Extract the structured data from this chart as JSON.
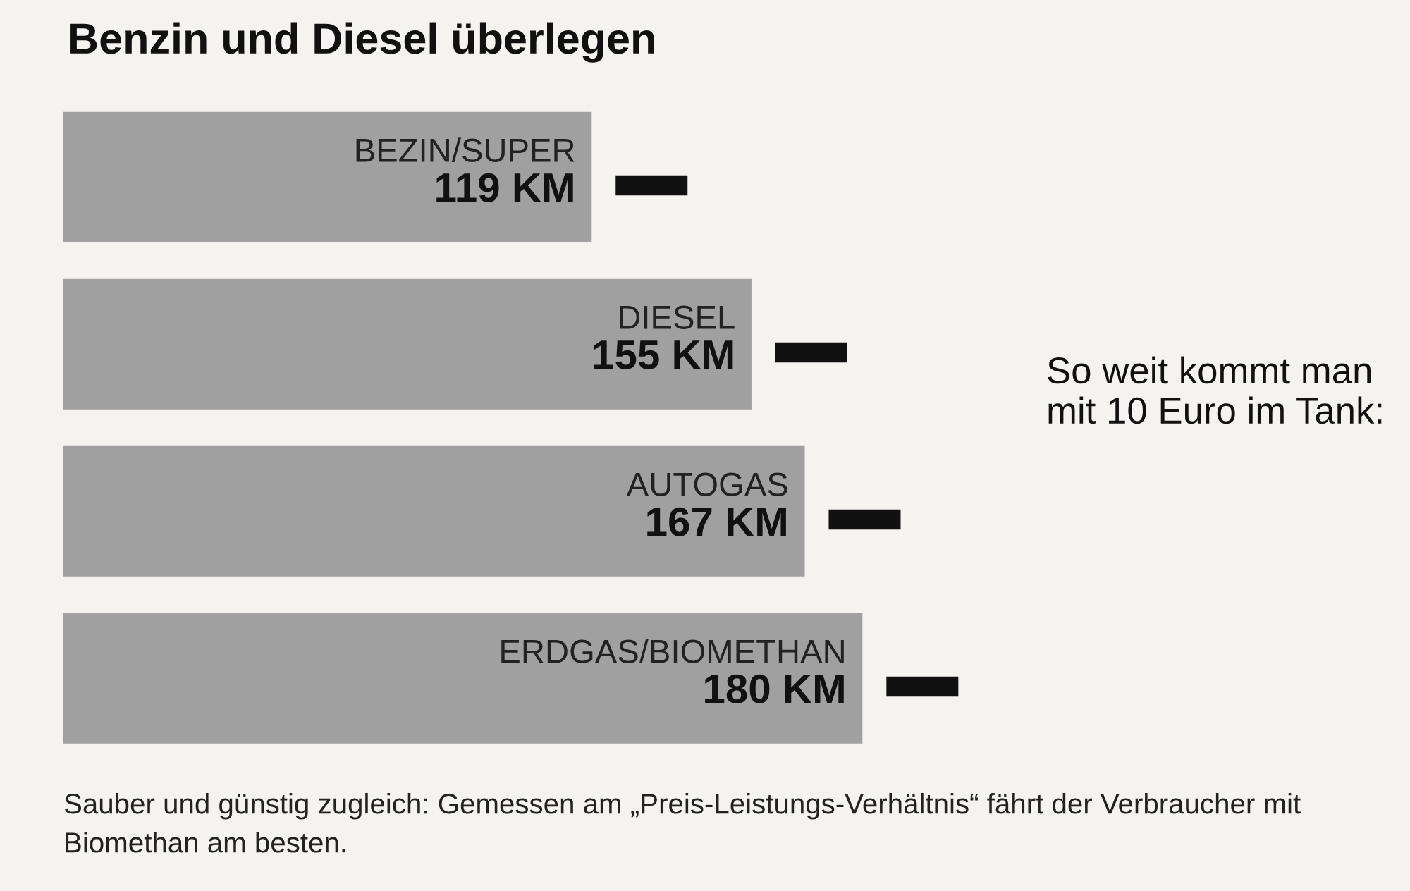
{
  "chart_data": {
    "type": "bar",
    "orientation": "horizontal",
    "title": "Benzin und Diesel überlegen",
    "categories": [
      "BEZIN/SUPER",
      "DIESEL",
      "AUTOGAS",
      "ERDGAS/BIOMETHAN"
    ],
    "values": [
      119,
      155,
      167,
      180
    ],
    "value_labels": [
      "119 KM",
      "155 KM",
      "167 KM",
      "180 KM"
    ],
    "colors": [
      "#a0a0a0",
      "#a0a0a0",
      "#a0a0a0",
      "#a0a0a0"
    ],
    "tick_labels": false,
    "annotations": [
      "So weit kommt man mit 10 Euro im Tank:",
      "Sauber und günstig zugleich: Gemessen am „Preis-Leistungs-Verhältnis“ fährt der Verbraucher mit Biomethan am besten."
    ]
  }
}
